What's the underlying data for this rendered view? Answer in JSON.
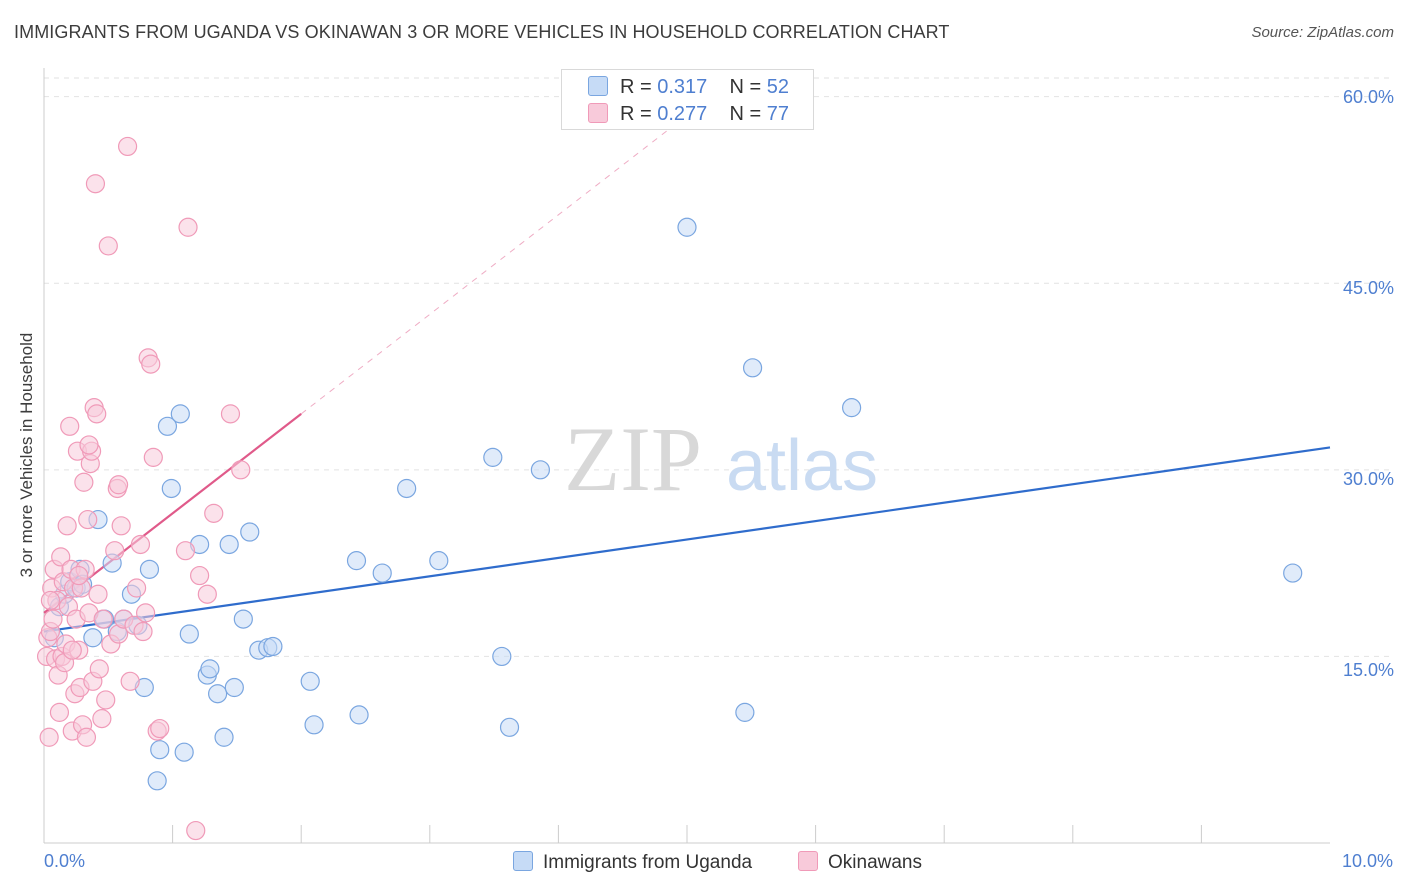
{
  "chart_data": {
    "type": "scatter",
    "title": "IMMIGRANTS FROM UGANDA VS OKINAWAN 3 OR MORE VEHICLES IN HOUSEHOLD CORRELATION CHART",
    "source": "Source: ZipAtlas.com",
    "xlabel": "",
    "ylabel": "3 or more Vehicles in Household",
    "xlim": [
      0,
      10
    ],
    "ylim": [
      0,
      61.5
    ],
    "x_tick_labels": [
      "0.0%",
      "10.0%"
    ],
    "y_ticks": [
      15,
      30,
      45,
      60
    ],
    "y_tick_labels": [
      "15.0%",
      "30.0%",
      "45.0%",
      "60.0%"
    ],
    "grid": true,
    "watermark": {
      "zip": "ZIP",
      "atlas": "atlas"
    },
    "legend": {
      "position": "top-center",
      "entries": [
        {
          "r_label": "R =",
          "r_value": "0.317",
          "n_label": "N =",
          "n_value": "52"
        },
        {
          "r_label": "R =",
          "r_value": "0.277",
          "n_label": "N =",
          "n_value": "77"
        }
      ]
    },
    "series": [
      {
        "name": "Immigrants from Uganda",
        "color": "#7aa6e0",
        "fill": "#c6dbf6",
        "trend": {
          "x0": 0.0,
          "y0": 17.0,
          "x1": 10.0,
          "y1": 31.8,
          "color": "#2f6ccc"
        },
        "points": [
          [
            0.08,
            16.5
          ],
          [
            0.12,
            19.0
          ],
          [
            0.16,
            20.0
          ],
          [
            0.2,
            21.0
          ],
          [
            0.25,
            20.5
          ],
          [
            0.28,
            22.0
          ],
          [
            0.3,
            20.8
          ],
          [
            0.38,
            16.5
          ],
          [
            0.42,
            26.0
          ],
          [
            0.47,
            18.0
          ],
          [
            0.53,
            22.5
          ],
          [
            0.57,
            17.0
          ],
          [
            0.62,
            18.0
          ],
          [
            0.68,
            20.0
          ],
          [
            0.73,
            17.5
          ],
          [
            0.78,
            12.5
          ],
          [
            0.82,
            22.0
          ],
          [
            0.88,
            5.0
          ],
          [
            0.9,
            7.5
          ],
          [
            0.96,
            33.5
          ],
          [
            0.99,
            28.5
          ],
          [
            1.06,
            34.5
          ],
          [
            1.09,
            7.3
          ],
          [
            1.13,
            16.8
          ],
          [
            1.21,
            24.0
          ],
          [
            1.27,
            13.5
          ],
          [
            1.29,
            14.0
          ],
          [
            1.35,
            12.0
          ],
          [
            1.4,
            8.5
          ],
          [
            1.44,
            24.0
          ],
          [
            1.48,
            12.5
          ],
          [
            1.55,
            18.0
          ],
          [
            1.6,
            25.0
          ],
          [
            1.67,
            15.5
          ],
          [
            1.74,
            15.7
          ],
          [
            1.78,
            15.8
          ],
          [
            2.07,
            13.0
          ],
          [
            2.1,
            9.5
          ],
          [
            2.43,
            22.7
          ],
          [
            2.45,
            10.3
          ],
          [
            2.63,
            21.7
          ],
          [
            2.82,
            28.5
          ],
          [
            3.07,
            22.7
          ],
          [
            3.49,
            31.0
          ],
          [
            3.56,
            15.0
          ],
          [
            3.62,
            9.3
          ],
          [
            3.86,
            30.0
          ],
          [
            5.0,
            49.5
          ],
          [
            5.45,
            10.5
          ],
          [
            5.51,
            38.2
          ],
          [
            6.28,
            35.0
          ],
          [
            9.71,
            21.7
          ]
        ]
      },
      {
        "name": "Okinawans",
        "color": "#f09ab8",
        "fill": "#f8cada",
        "trend": {
          "x0": 0.0,
          "y0": 18.5,
          "x1": 2.0,
          "y1": 34.5,
          "color": "#e05a8a",
          "dash_x1": 5.0,
          "dash_y1": 58.5
        },
        "points": [
          [
            0.02,
            15.0
          ],
          [
            0.03,
            16.5
          ],
          [
            0.04,
            8.5
          ],
          [
            0.05,
            17.0
          ],
          [
            0.06,
            20.5
          ],
          [
            0.07,
            18.0
          ],
          [
            0.08,
            22.0
          ],
          [
            0.09,
            14.8
          ],
          [
            0.1,
            19.5
          ],
          [
            0.11,
            13.5
          ],
          [
            0.12,
            10.5
          ],
          [
            0.13,
            23.0
          ],
          [
            0.14,
            15.0
          ],
          [
            0.15,
            21.0
          ],
          [
            0.16,
            14.5
          ],
          [
            0.17,
            16.0
          ],
          [
            0.18,
            25.5
          ],
          [
            0.19,
            19.0
          ],
          [
            0.2,
            33.5
          ],
          [
            0.21,
            22.0
          ],
          [
            0.22,
            9.0
          ],
          [
            0.23,
            20.5
          ],
          [
            0.24,
            12.0
          ],
          [
            0.25,
            18.0
          ],
          [
            0.26,
            31.5
          ],
          [
            0.27,
            15.5
          ],
          [
            0.28,
            12.5
          ],
          [
            0.29,
            20.5
          ],
          [
            0.3,
            9.5
          ],
          [
            0.31,
            29.0
          ],
          [
            0.32,
            22.0
          ],
          [
            0.33,
            8.5
          ],
          [
            0.34,
            26.0
          ],
          [
            0.35,
            18.5
          ],
          [
            0.36,
            30.5
          ],
          [
            0.37,
            31.5
          ],
          [
            0.38,
            13.0
          ],
          [
            0.39,
            35.0
          ],
          [
            0.4,
            53.0
          ],
          [
            0.41,
            34.5
          ],
          [
            0.42,
            20.0
          ],
          [
            0.43,
            14.0
          ],
          [
            0.45,
            10.0
          ],
          [
            0.46,
            18.0
          ],
          [
            0.48,
            11.5
          ],
          [
            0.5,
            48.0
          ],
          [
            0.52,
            16.0
          ],
          [
            0.55,
            23.5
          ],
          [
            0.57,
            28.5
          ],
          [
            0.58,
            16.8
          ],
          [
            0.6,
            25.5
          ],
          [
            0.62,
            18.0
          ],
          [
            0.65,
            56.0
          ],
          [
            0.67,
            13.0
          ],
          [
            0.7,
            17.5
          ],
          [
            0.72,
            20.5
          ],
          [
            0.75,
            24.0
          ],
          [
            0.77,
            17.0
          ],
          [
            0.79,
            18.5
          ],
          [
            0.81,
            39.0
          ],
          [
            0.83,
            38.5
          ],
          [
            0.85,
            31.0
          ],
          [
            0.88,
            9.0
          ],
          [
            0.9,
            9.2
          ],
          [
            1.1,
            23.5
          ],
          [
            1.12,
            49.5
          ],
          [
            1.18,
            1.0
          ],
          [
            1.21,
            21.5
          ],
          [
            1.27,
            20.0
          ],
          [
            1.32,
            26.5
          ],
          [
            1.45,
            34.5
          ],
          [
            1.53,
            30.0
          ],
          [
            0.58,
            28.8
          ],
          [
            0.35,
            32.0
          ],
          [
            0.22,
            15.5
          ],
          [
            0.27,
            21.5
          ],
          [
            0.05,
            19.5
          ]
        ]
      }
    ]
  }
}
